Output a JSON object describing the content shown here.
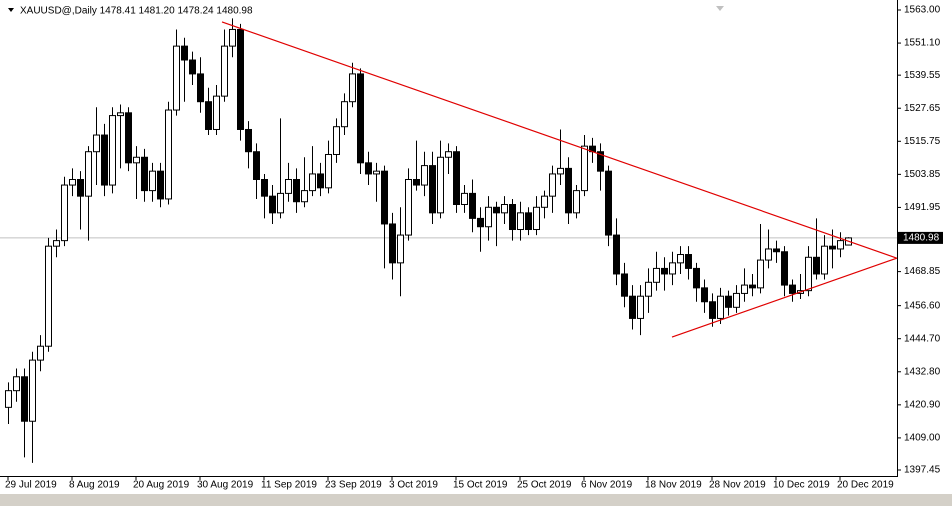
{
  "chart_data": {
    "type": "candlestick",
    "header": "XAUUSD@,Daily  1478.41 1481.20 1478.24 1480.98",
    "ylim": [
      1397.45,
      1563.0
    ],
    "yticks": [
      {
        "value": 1563.0,
        "label": "1563.00"
      },
      {
        "value": 1551.1,
        "label": "1551.10"
      },
      {
        "value": 1539.55,
        "label": "1539.55"
      },
      {
        "value": 1527.65,
        "label": "1527.65"
      },
      {
        "value": 1515.75,
        "label": "1515.75"
      },
      {
        "value": 1503.85,
        "label": "1503.85"
      },
      {
        "value": 1491.95,
        "label": "1491.95"
      },
      {
        "value": 1468.85,
        "label": "1468.85"
      },
      {
        "value": 1456.6,
        "label": "1456.60"
      },
      {
        "value": 1444.7,
        "label": "1444.70"
      },
      {
        "value": 1432.8,
        "label": "1432.80"
      },
      {
        "value": 1420.9,
        "label": "1420.90"
      },
      {
        "value": 1409.0,
        "label": "1409.00"
      },
      {
        "value": 1397.45,
        "label": "1397.45"
      }
    ],
    "current_price": {
      "value": 1480.98,
      "label": "1480.98"
    },
    "xlim": [
      -1,
      111
    ],
    "xticks": [
      {
        "value": 0,
        "label": "29 Jul 2019"
      },
      {
        "value": 8,
        "label": "8 Aug 2019"
      },
      {
        "value": 16,
        "label": "20 Aug 2019"
      },
      {
        "value": 24,
        "label": "30 Aug 2019"
      },
      {
        "value": 32,
        "label": "11 Sep 2019"
      },
      {
        "value": 40,
        "label": "23 Sep 2019"
      },
      {
        "value": 48,
        "label": "3 Oct 2019"
      },
      {
        "value": 56,
        "label": "15 Oct 2019"
      },
      {
        "value": 64,
        "label": "25 Oct 2019"
      },
      {
        "value": 72,
        "label": "6 Nov 2019"
      },
      {
        "value": 80,
        "label": "18 Nov 2019"
      },
      {
        "value": 88,
        "label": "28 Nov 2019"
      },
      {
        "value": 96,
        "label": "10 Dec 2019"
      },
      {
        "value": 104,
        "label": "20 Dec 2019"
      }
    ],
    "bull_color": "#ffffff",
    "bear_color": "#000000",
    "grid": false,
    "open": [
      1420,
      1426,
      1431,
      1415,
      1437,
      1442,
      1478,
      1480,
      1500,
      1502,
      1496,
      1512,
      1518,
      1500,
      1525,
      1526,
      1508,
      1510,
      1498,
      1505,
      1495,
      1527,
      1550,
      1545,
      1540,
      1530,
      1520,
      1532,
      1550,
      1556,
      1520,
      1512,
      1502,
      1496,
      1490,
      1497,
      1502,
      1494,
      1498,
      1504,
      1499,
      1511,
      1521,
      1530,
      1540,
      1508,
      1504,
      1505,
      1486,
      1472,
      1482,
      1502,
      1500,
      1507,
      1490,
      1510,
      1512,
      1493,
      1497,
      1488,
      1485,
      1492,
      1490,
      1493,
      1484,
      1490,
      1484,
      1492,
      1496,
      1504,
      1506,
      1490,
      1498,
      1514,
      1512,
      1505,
      1482,
      1468,
      1460,
      1452,
      1460,
      1465,
      1470,
      1468,
      1472,
      1475,
      1470,
      1463,
      1458,
      1452,
      1460,
      1456,
      1461,
      1464,
      1463,
      1473,
      1477,
      1476,
      1464,
      1461,
      1462,
      1474,
      1468,
      1478,
      1477,
      1478.41
    ],
    "high": [
      1429,
      1434,
      1434,
      1440,
      1446,
      1481,
      1484,
      1503,
      1506,
      1505,
      1514,
      1528,
      1522,
      1528,
      1529,
      1528,
      1514,
      1513,
      1508,
      1508,
      1530,
      1556,
      1553,
      1548,
      1546,
      1535,
      1536,
      1556,
      1560,
      1558,
      1523,
      1515,
      1504,
      1500,
      1524,
      1508,
      1506,
      1510,
      1514,
      1508,
      1516,
      1524,
      1533,
      1544,
      1542,
      1512,
      1508,
      1507,
      1490,
      1492,
      1506,
      1516,
      1512,
      1512,
      1516,
      1515,
      1514,
      1500,
      1502,
      1492,
      1496,
      1494,
      1496,
      1495,
      1494,
      1492,
      1496,
      1498,
      1507,
      1520,
      1510,
      1500,
      1518,
      1517,
      1515,
      1507,
      1488,
      1472,
      1464,
      1464,
      1470,
      1476,
      1474,
      1476,
      1478,
      1478,
      1472,
      1466,
      1461,
      1463,
      1462,
      1464,
      1470,
      1468,
      1486,
      1484,
      1480,
      1478,
      1466,
      1468,
      1478,
      1488,
      1482,
      1484,
      1483,
      1481.2
    ],
    "low": [
      1414,
      1422,
      1402,
      1400,
      1433,
      1440,
      1474,
      1478,
      1496,
      1484,
      1480,
      1500,
      1496,
      1497,
      1506,
      1505,
      1495,
      1494,
      1494,
      1492,
      1493,
      1525,
      1530,
      1536,
      1526,
      1518,
      1518,
      1530,
      1546,
      1516,
      1506,
      1495,
      1488,
      1486,
      1488,
      1494,
      1490,
      1492,
      1496,
      1496,
      1497,
      1508,
      1518,
      1528,
      1504,
      1500,
      1494,
      1470,
      1466,
      1460,
      1480,
      1498,
      1496,
      1486,
      1488,
      1504,
      1490,
      1490,
      1483,
      1476,
      1480,
      1478,
      1486,
      1480,
      1480,
      1482,
      1482,
      1488,
      1490,
      1500,
      1486,
      1488,
      1496,
      1508,
      1498,
      1478,
      1464,
      1456,
      1448,
      1446,
      1454,
      1462,
      1462,
      1464,
      1468,
      1466,
      1458,
      1454,
      1449,
      1450,
      1453,
      1454,
      1458,
      1460,
      1461,
      1470,
      1472,
      1460,
      1458,
      1459,
      1460,
      1466,
      1466,
      1470,
      1474,
      1478.24
    ],
    "close": [
      1426,
      1431,
      1415,
      1437,
      1442,
      1478,
      1480,
      1500,
      1502,
      1496,
      1512,
      1518,
      1500,
      1525,
      1526,
      1508,
      1510,
      1498,
      1505,
      1495,
      1527,
      1550,
      1545,
      1540,
      1530,
      1520,
      1532,
      1550,
      1556,
      1520,
      1512,
      1502,
      1496,
      1490,
      1497,
      1502,
      1494,
      1498,
      1504,
      1499,
      1511,
      1521,
      1530,
      1540,
      1508,
      1504,
      1505,
      1486,
      1472,
      1482,
      1502,
      1500,
      1507,
      1490,
      1510,
      1512,
      1493,
      1497,
      1488,
      1485,
      1492,
      1490,
      1493,
      1484,
      1490,
      1484,
      1492,
      1496,
      1504,
      1506,
      1490,
      1498,
      1514,
      1512,
      1505,
      1482,
      1468,
      1460,
      1452,
      1460,
      1465,
      1470,
      1468,
      1472,
      1475,
      1470,
      1463,
      1458,
      1452,
      1460,
      1456,
      1461,
      1464,
      1463,
      1473,
      1477,
      1476,
      1464,
      1461,
      1462,
      1474,
      1468,
      1478,
      1477,
      1480,
      1480.98
    ],
    "trendlines": [
      {
        "color": "#e00000",
        "x": [
          26.75,
          111.1
        ],
        "y": [
          1558.7,
          1473.7
        ]
      },
      {
        "color": "#e00000",
        "x": [
          83,
          111.1
        ],
        "y": [
          1445.3,
          1473.7
        ]
      }
    ]
  }
}
